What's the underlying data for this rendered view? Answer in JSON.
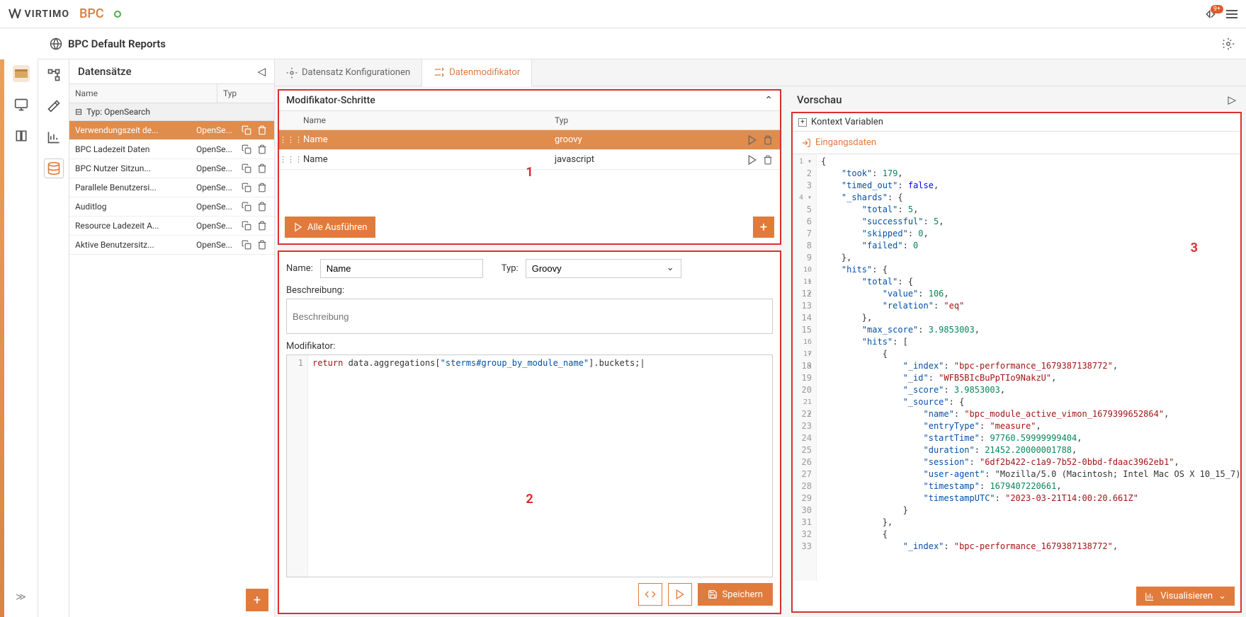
{
  "brand": {
    "logo": "VIRTIMO",
    "product": "BPC"
  },
  "notif_badge": "9+",
  "page_title": "BPC Default Reports",
  "datasets": {
    "title": "Datensätze",
    "col_name": "Name",
    "col_typ": "Typ",
    "group_label": "Typ: OpenSearch",
    "rows": [
      {
        "name": "Verwendungszeit de...",
        "typ": "OpenSe..."
      },
      {
        "name": "BPC Ladezeit Daten",
        "typ": "OpenSe..."
      },
      {
        "name": "BPC Nutzer Sitzun...",
        "typ": "OpenSe..."
      },
      {
        "name": "Parallele Benutzersi...",
        "typ": "OpenSe..."
      },
      {
        "name": "Auditlog",
        "typ": "OpenSe..."
      },
      {
        "name": "Resource Ladezeit A...",
        "typ": "OpenSe..."
      },
      {
        "name": "Aktive Benutzersitz...",
        "typ": "OpenSe..."
      }
    ]
  },
  "tabs": {
    "config": "Datensatz Konfigurationen",
    "modifier": "Datenmodifikator"
  },
  "steps": {
    "title": "Modifikator-Schritte",
    "col_name": "Name",
    "col_typ": "Typ",
    "rows": [
      {
        "name": "Name",
        "typ": "groovy"
      },
      {
        "name": "Name",
        "typ": "javascript"
      }
    ],
    "run_all": "Alle Ausführen"
  },
  "form": {
    "name_label": "Name:",
    "name_value": "Name",
    "typ_label": "Typ:",
    "typ_value": "Groovy",
    "desc_label": "Beschreibung:",
    "desc_placeholder": "Beschreibung",
    "mod_label": "Modifikator:",
    "code": "return data.aggregations[\"sterms#group_by_module_name\"].buckets;",
    "save": "Speichern"
  },
  "preview": {
    "title": "Vorschau",
    "kontext": "Kontext Variablen",
    "eingang": "Eingangsdaten",
    "visualize": "Visualisieren",
    "json_lines": [
      "{",
      "    \"took\": 179,",
      "    \"timed_out\": false,",
      "    \"_shards\": {",
      "        \"total\": 5,",
      "        \"successful\": 5,",
      "        \"skipped\": 0,",
      "        \"failed\": 0",
      "    },",
      "    \"hits\": {",
      "        \"total\": {",
      "            \"value\": 106,",
      "            \"relation\": \"eq\"",
      "        },",
      "        \"max_score\": 3.9853003,",
      "        \"hits\": [",
      "            {",
      "                \"_index\": \"bpc-performance_1679387138772\",",
      "                \"_id\": \"WFB5BIcBuPpTIo9NakzU\",",
      "                \"_score\": 3.9853003,",
      "                \"_source\": {",
      "                    \"name\": \"bpc_module_active_vimon_1679399652864\",",
      "                    \"entryType\": \"measure\",",
      "                    \"startTime\": 97760.59999999404,",
      "                    \"duration\": 21452.20000001788,",
      "                    \"session\": \"6df2b422-c1a9-7b52-0bbd-fdaac3962eb1\",",
      "                    \"user-agent\": \"Mozilla/5.0 (Macintosh; Intel Mac OS X 10_15_7)",
      "                    \"timestamp\": 1679407220661,",
      "                    \"timestampUTC\": \"2023-03-21T14:00:20.661Z\"",
      "                }",
      "            },",
      "            {",
      "                \"_index\": \"bpc-performance_1679387138772\","
    ]
  },
  "markers": {
    "one": "1",
    "two": "2",
    "three": "3"
  }
}
